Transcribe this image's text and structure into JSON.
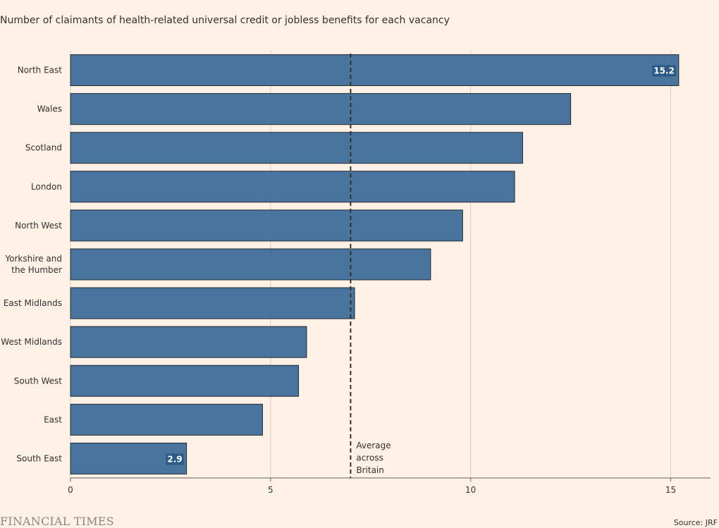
{
  "subtitle": "Number of claimants of health-related universal credit or jobless benefits for each vacancy",
  "chart_data": {
    "type": "bar",
    "orientation": "horizontal",
    "categories": [
      [
        "North East"
      ],
      [
        "Wales"
      ],
      [
        "Scotland"
      ],
      [
        "London"
      ],
      [
        "North West"
      ],
      [
        "Yorkshire and",
        "the Humber"
      ],
      [
        "East Midlands"
      ],
      [
        "West Midlands"
      ],
      [
        "South West"
      ],
      [
        "East"
      ],
      [
        "South East"
      ]
    ],
    "values": [
      15.2,
      12.5,
      11.3,
      11.1,
      9.8,
      9.0,
      7.1,
      5.9,
      5.7,
      4.8,
      2.9
    ],
    "data_labels": [
      {
        "index": 0,
        "text": "15.2"
      },
      {
        "index": 10,
        "text": "2.9"
      }
    ],
    "xlim": [
      0,
      16
    ],
    "xticks": [
      0,
      5,
      10,
      15
    ],
    "grid": true,
    "reference_line": {
      "value": 7.0,
      "style": "dashed",
      "label": [
        "Average",
        "across",
        "Britain"
      ]
    },
    "colors": {
      "bar": "#3f6d99",
      "bar_edge": "#262a33",
      "grid": "#d9cfc6",
      "axis": "#66605c",
      "text": "#33302e",
      "label_bg": "#2c5a86",
      "label_text": "#ffffff"
    }
  },
  "footer": {
    "brand": "FINANCIAL TIMES",
    "source": "Source: JRF"
  }
}
